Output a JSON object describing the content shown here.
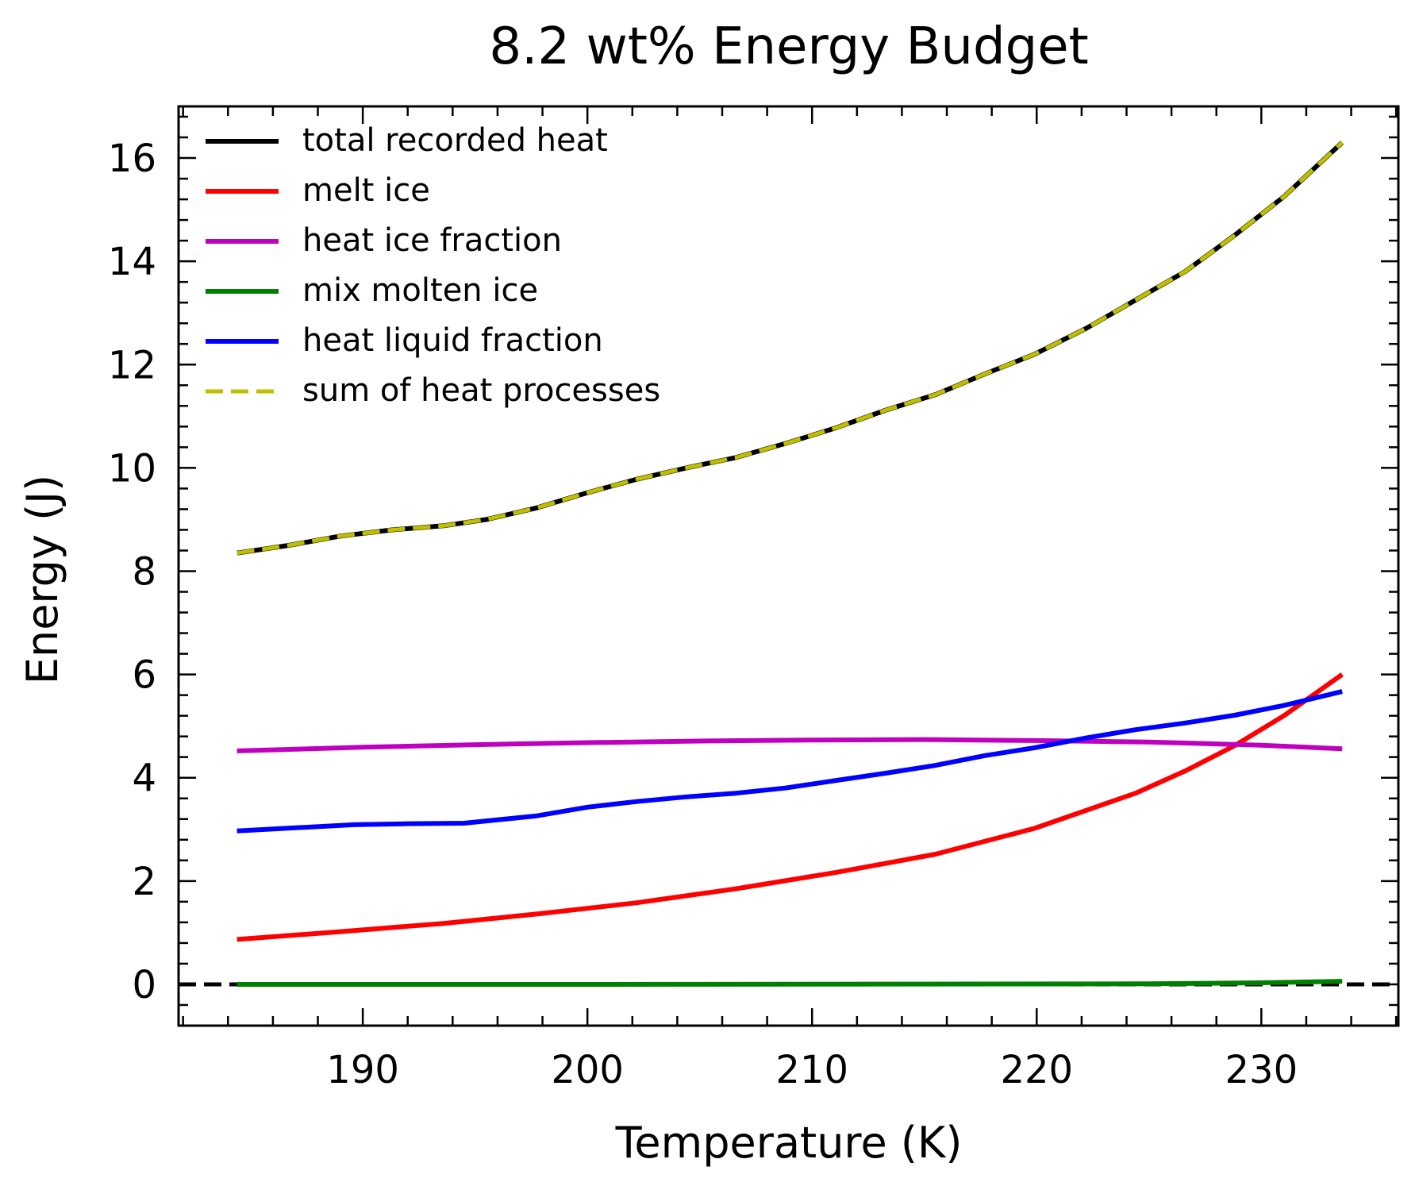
{
  "chart_data": {
    "type": "line",
    "title": "8.2 wt% Energy Budget",
    "xlabel": "Temperature (K)",
    "ylabel": "Energy (J)",
    "xlim": [
      181.8,
      236.1
    ],
    "ylim": [
      -0.8,
      17.0
    ],
    "xticks": [
      190,
      200,
      210,
      220,
      230
    ],
    "yticks": [
      0,
      2,
      4,
      6,
      8,
      10,
      12,
      14,
      16
    ],
    "legend_position": "top-left",
    "grid": false,
    "zero_line": {
      "y": 0,
      "color": "#000000",
      "style": "dashed"
    },
    "series": [
      {
        "name": "total recorded heat",
        "color": "#000000",
        "style": "solid",
        "x": [
          184.4,
          186.7,
          189,
          191.3,
          193.6,
          195.5,
          197.7,
          200,
          202.2,
          204.4,
          206.6,
          208.8,
          211.1,
          213.3,
          215.5,
          217.7,
          219.9,
          222.2,
          224.4,
          226.6,
          228.8,
          231.0,
          233.6
        ],
        "values": [
          8.35,
          8.5,
          8.68,
          8.8,
          8.88,
          9.0,
          9.22,
          9.52,
          9.78,
          10.0,
          10.2,
          10.47,
          10.78,
          11.12,
          11.42,
          11.82,
          12.2,
          12.7,
          13.25,
          13.8,
          14.5,
          15.25,
          16.3
        ]
      },
      {
        "name": "melt ice",
        "color": "#ff0000",
        "style": "solid",
        "x": [
          184.4,
          189,
          193.6,
          197.7,
          202.2,
          206.6,
          211.1,
          215.5,
          219.9,
          224.4,
          226.6,
          228.8,
          231.0,
          233.6
        ],
        "values": [
          0.87,
          1.02,
          1.18,
          1.36,
          1.58,
          1.85,
          2.17,
          2.52,
          3.02,
          3.7,
          4.13,
          4.62,
          5.2,
          6.0
        ]
      },
      {
        "name": "heat ice fraction",
        "color": "#bf00bf",
        "style": "solid",
        "x": [
          184.4,
          190,
          195,
          200,
          205,
          210,
          215,
          220,
          225,
          230,
          233.6
        ],
        "values": [
          4.52,
          4.59,
          4.64,
          4.68,
          4.71,
          4.73,
          4.74,
          4.72,
          4.69,
          4.63,
          4.56
        ]
      },
      {
        "name": "mix molten ice",
        "color": "#008000",
        "style": "solid",
        "x": [
          184.4,
          200,
          215,
          225,
          230,
          233.6
        ],
        "values": [
          0.0,
          0.0,
          0.005,
          0.01,
          0.03,
          0.06
        ]
      },
      {
        "name": "heat liquid fraction",
        "color": "#0000ff",
        "style": "solid",
        "x": [
          184.4,
          187,
          189.6,
          192,
          194.5,
          197.7,
          200,
          202.2,
          204.4,
          206.6,
          208.8,
          211.1,
          213.3,
          215.5,
          217.7,
          219.9,
          222.2,
          224.4,
          226.6,
          228.8,
          231.0,
          233.6
        ],
        "values": [
          2.97,
          3.03,
          3.09,
          3.11,
          3.12,
          3.26,
          3.43,
          3.54,
          3.63,
          3.7,
          3.8,
          3.95,
          4.09,
          4.24,
          4.43,
          4.58,
          4.77,
          4.93,
          5.06,
          5.21,
          5.4,
          5.67
        ]
      },
      {
        "name": "sum of heat processes",
        "color": "#bfbf00",
        "style": "dashed",
        "x": [
          184.4,
          186.7,
          189,
          191.3,
          193.6,
          195.5,
          197.7,
          200,
          202.2,
          204.4,
          206.6,
          208.8,
          211.1,
          213.3,
          215.5,
          217.7,
          219.9,
          222.2,
          224.4,
          226.6,
          228.8,
          231.0,
          233.6
        ],
        "values": [
          8.35,
          8.5,
          8.68,
          8.8,
          8.88,
          9.0,
          9.22,
          9.52,
          9.78,
          10.0,
          10.2,
          10.47,
          10.78,
          11.12,
          11.42,
          11.82,
          12.2,
          12.7,
          13.25,
          13.8,
          14.5,
          15.25,
          16.3
        ]
      }
    ]
  }
}
